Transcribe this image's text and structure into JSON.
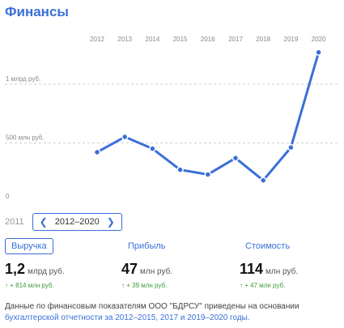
{
  "header": {
    "title": "Финансы"
  },
  "chart_data": {
    "type": "line",
    "x": [
      "2012",
      "2013",
      "2014",
      "2015",
      "2016",
      "2017",
      "2018",
      "2019",
      "2020"
    ],
    "y_tick_labels": [
      "0",
      "500 млн руб.",
      "1 млрд руб."
    ],
    "series": [
      {
        "values": [
          380,
          510,
          410,
          230,
          190,
          330,
          140,
          420,
          1230
        ]
      }
    ],
    "ylim": [
      0,
      1400
    ],
    "y_ticks": [
      0,
      500,
      1000
    ],
    "grid": true,
    "line_color": "#3a6fd8"
  },
  "range": {
    "prev_year": "2011",
    "label": "2012–2020"
  },
  "metrics": [
    {
      "tab": "Выручка",
      "num": "1,2",
      "unit": "млрд руб.",
      "change": "↑ + 814 млн руб."
    },
    {
      "tab": "Прибыль",
      "num": "47",
      "unit": "млн руб.",
      "change": "↑ + 39 млн руб."
    },
    {
      "tab": "Стоимость",
      "num": "114",
      "unit": "млн руб.",
      "change": "↑ + 47 млн руб."
    }
  ],
  "note": {
    "text": "Данные по финансовым показателям ООО \"БДРСУ\" приведены на основании ",
    "link": "бухгалтерской отчетности за 2012–2015, 2017 и 2019–2020 годы."
  }
}
